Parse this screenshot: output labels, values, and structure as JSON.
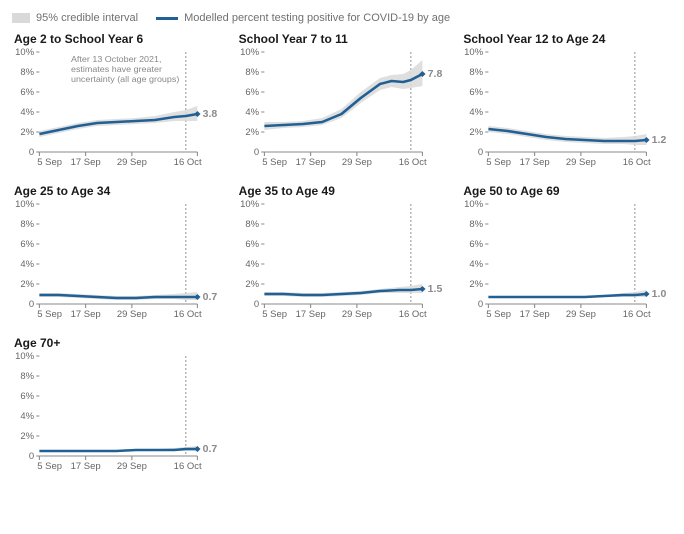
{
  "legend": {
    "ci_label": "95% credible interval",
    "line_label": "Modelled percent testing positive for COVID-19 by age",
    "ci_color": "#d9d9d9",
    "line_color": "#206095"
  },
  "axes": {
    "ylim": [
      0,
      10
    ],
    "yticks": [
      0,
      2,
      4,
      6,
      8,
      10
    ],
    "ytick_labels": [
      "0",
      "2%",
      "4%",
      "6%",
      "8%",
      "10%"
    ],
    "xticks": [
      0,
      12,
      24,
      41
    ],
    "xtick_labels": [
      "5 Sep",
      "17 Sep",
      "29 Sep",
      "16 Oct"
    ],
    "uncertainty_cutoff_x": 38,
    "grid_color": "#e0e0e0"
  },
  "note_text": [
    "After 13 October 2021,",
    "estimates have greater",
    "uncertainty (all age groups)"
  ],
  "panels": [
    {
      "title": "Age 2 to School Year 6",
      "end_label": "3.8",
      "show_note": true,
      "series": [
        {
          "x": 0,
          "y": 1.8,
          "lo": 1.5,
          "hi": 2.1
        },
        {
          "x": 5,
          "y": 2.2,
          "lo": 1.9,
          "hi": 2.5
        },
        {
          "x": 10,
          "y": 2.6,
          "lo": 2.3,
          "hi": 2.9
        },
        {
          "x": 15,
          "y": 2.9,
          "lo": 2.6,
          "hi": 3.2
        },
        {
          "x": 20,
          "y": 3.0,
          "lo": 2.7,
          "hi": 3.3
        },
        {
          "x": 25,
          "y": 3.1,
          "lo": 2.8,
          "hi": 3.4
        },
        {
          "x": 30,
          "y": 3.2,
          "lo": 2.9,
          "hi": 3.6
        },
        {
          "x": 35,
          "y": 3.5,
          "lo": 3.1,
          "hi": 4.0
        },
        {
          "x": 38,
          "y": 3.6,
          "lo": 3.1,
          "hi": 4.2
        },
        {
          "x": 41,
          "y": 3.8,
          "lo": 3.1,
          "hi": 4.6
        }
      ]
    },
    {
      "title": "School Year 7 to 11",
      "end_label": "7.8",
      "show_note": false,
      "series": [
        {
          "x": 0,
          "y": 2.6,
          "lo": 2.2,
          "hi": 3.0
        },
        {
          "x": 5,
          "y": 2.7,
          "lo": 2.4,
          "hi": 3.0
        },
        {
          "x": 10,
          "y": 2.8,
          "lo": 2.5,
          "hi": 3.1
        },
        {
          "x": 15,
          "y": 3.0,
          "lo": 2.7,
          "hi": 3.4
        },
        {
          "x": 20,
          "y": 3.8,
          "lo": 3.4,
          "hi": 4.3
        },
        {
          "x": 25,
          "y": 5.4,
          "lo": 4.9,
          "hi": 6.0
        },
        {
          "x": 30,
          "y": 6.8,
          "lo": 6.2,
          "hi": 7.4
        },
        {
          "x": 33,
          "y": 7.1,
          "lo": 6.5,
          "hi": 7.7
        },
        {
          "x": 36,
          "y": 7.0,
          "lo": 6.3,
          "hi": 7.8
        },
        {
          "x": 38,
          "y": 7.2,
          "lo": 6.4,
          "hi": 8.2
        },
        {
          "x": 41,
          "y": 7.8,
          "lo": 6.6,
          "hi": 9.2
        }
      ]
    },
    {
      "title": "School Year 12 to Age 24",
      "end_label": "1.2",
      "show_note": false,
      "series": [
        {
          "x": 0,
          "y": 2.3,
          "lo": 2.0,
          "hi": 2.6
        },
        {
          "x": 5,
          "y": 2.1,
          "lo": 1.8,
          "hi": 2.4
        },
        {
          "x": 10,
          "y": 1.8,
          "lo": 1.5,
          "hi": 2.1
        },
        {
          "x": 15,
          "y": 1.5,
          "lo": 1.2,
          "hi": 1.8
        },
        {
          "x": 20,
          "y": 1.3,
          "lo": 1.0,
          "hi": 1.6
        },
        {
          "x": 25,
          "y": 1.2,
          "lo": 0.9,
          "hi": 1.5
        },
        {
          "x": 30,
          "y": 1.1,
          "lo": 0.8,
          "hi": 1.4
        },
        {
          "x": 35,
          "y": 1.1,
          "lo": 0.8,
          "hi": 1.5
        },
        {
          "x": 38,
          "y": 1.1,
          "lo": 0.7,
          "hi": 1.6
        },
        {
          "x": 41,
          "y": 1.2,
          "lo": 0.7,
          "hi": 1.8
        }
      ]
    },
    {
      "title": "Age 25 to Age 34",
      "end_label": "0.7",
      "show_note": false,
      "series": [
        {
          "x": 0,
          "y": 0.9,
          "lo": 0.7,
          "hi": 1.1
        },
        {
          "x": 5,
          "y": 0.9,
          "lo": 0.7,
          "hi": 1.1
        },
        {
          "x": 10,
          "y": 0.8,
          "lo": 0.6,
          "hi": 1.0
        },
        {
          "x": 15,
          "y": 0.7,
          "lo": 0.5,
          "hi": 0.9
        },
        {
          "x": 20,
          "y": 0.6,
          "lo": 0.4,
          "hi": 0.8
        },
        {
          "x": 25,
          "y": 0.6,
          "lo": 0.4,
          "hi": 0.8
        },
        {
          "x": 30,
          "y": 0.7,
          "lo": 0.5,
          "hi": 0.9
        },
        {
          "x": 35,
          "y": 0.7,
          "lo": 0.5,
          "hi": 1.0
        },
        {
          "x": 38,
          "y": 0.7,
          "lo": 0.4,
          "hi": 1.1
        },
        {
          "x": 41,
          "y": 0.7,
          "lo": 0.4,
          "hi": 1.2
        }
      ]
    },
    {
      "title": "Age 35 to Age 49",
      "end_label": "1.5",
      "show_note": false,
      "series": [
        {
          "x": 0,
          "y": 1.0,
          "lo": 0.8,
          "hi": 1.2
        },
        {
          "x": 5,
          "y": 1.0,
          "lo": 0.8,
          "hi": 1.2
        },
        {
          "x": 10,
          "y": 0.9,
          "lo": 0.7,
          "hi": 1.1
        },
        {
          "x": 15,
          "y": 0.9,
          "lo": 0.7,
          "hi": 1.1
        },
        {
          "x": 20,
          "y": 1.0,
          "lo": 0.8,
          "hi": 1.2
        },
        {
          "x": 25,
          "y": 1.1,
          "lo": 0.9,
          "hi": 1.3
        },
        {
          "x": 30,
          "y": 1.3,
          "lo": 1.1,
          "hi": 1.5
        },
        {
          "x": 35,
          "y": 1.4,
          "lo": 1.1,
          "hi": 1.7
        },
        {
          "x": 38,
          "y": 1.4,
          "lo": 1.1,
          "hi": 1.8
        },
        {
          "x": 41,
          "y": 1.5,
          "lo": 1.1,
          "hi": 2.0
        }
      ]
    },
    {
      "title": "Age 50 to Age 69",
      "end_label": "1.0",
      "show_note": false,
      "series": [
        {
          "x": 0,
          "y": 0.7,
          "lo": 0.6,
          "hi": 0.8
        },
        {
          "x": 5,
          "y": 0.7,
          "lo": 0.6,
          "hi": 0.8
        },
        {
          "x": 10,
          "y": 0.7,
          "lo": 0.6,
          "hi": 0.8
        },
        {
          "x": 15,
          "y": 0.7,
          "lo": 0.6,
          "hi": 0.8
        },
        {
          "x": 20,
          "y": 0.7,
          "lo": 0.6,
          "hi": 0.8
        },
        {
          "x": 25,
          "y": 0.7,
          "lo": 0.6,
          "hi": 0.8
        },
        {
          "x": 30,
          "y": 0.8,
          "lo": 0.7,
          "hi": 0.9
        },
        {
          "x": 35,
          "y": 0.9,
          "lo": 0.7,
          "hi": 1.1
        },
        {
          "x": 38,
          "y": 0.9,
          "lo": 0.7,
          "hi": 1.2
        },
        {
          "x": 41,
          "y": 1.0,
          "lo": 0.7,
          "hi": 1.4
        }
      ]
    },
    {
      "title": "Age 70+",
      "end_label": "0.7",
      "show_note": false,
      "series": [
        {
          "x": 0,
          "y": 0.5,
          "lo": 0.4,
          "hi": 0.6
        },
        {
          "x": 5,
          "y": 0.5,
          "lo": 0.4,
          "hi": 0.6
        },
        {
          "x": 10,
          "y": 0.5,
          "lo": 0.4,
          "hi": 0.6
        },
        {
          "x": 15,
          "y": 0.5,
          "lo": 0.4,
          "hi": 0.6
        },
        {
          "x": 20,
          "y": 0.5,
          "lo": 0.4,
          "hi": 0.6
        },
        {
          "x": 25,
          "y": 0.6,
          "lo": 0.5,
          "hi": 0.7
        },
        {
          "x": 30,
          "y": 0.6,
          "lo": 0.5,
          "hi": 0.7
        },
        {
          "x": 35,
          "y": 0.6,
          "lo": 0.5,
          "hi": 0.8
        },
        {
          "x": 38,
          "y": 0.7,
          "lo": 0.5,
          "hi": 0.9
        },
        {
          "x": 41,
          "y": 0.7,
          "lo": 0.5,
          "hi": 1.0
        }
      ]
    }
  ]
}
